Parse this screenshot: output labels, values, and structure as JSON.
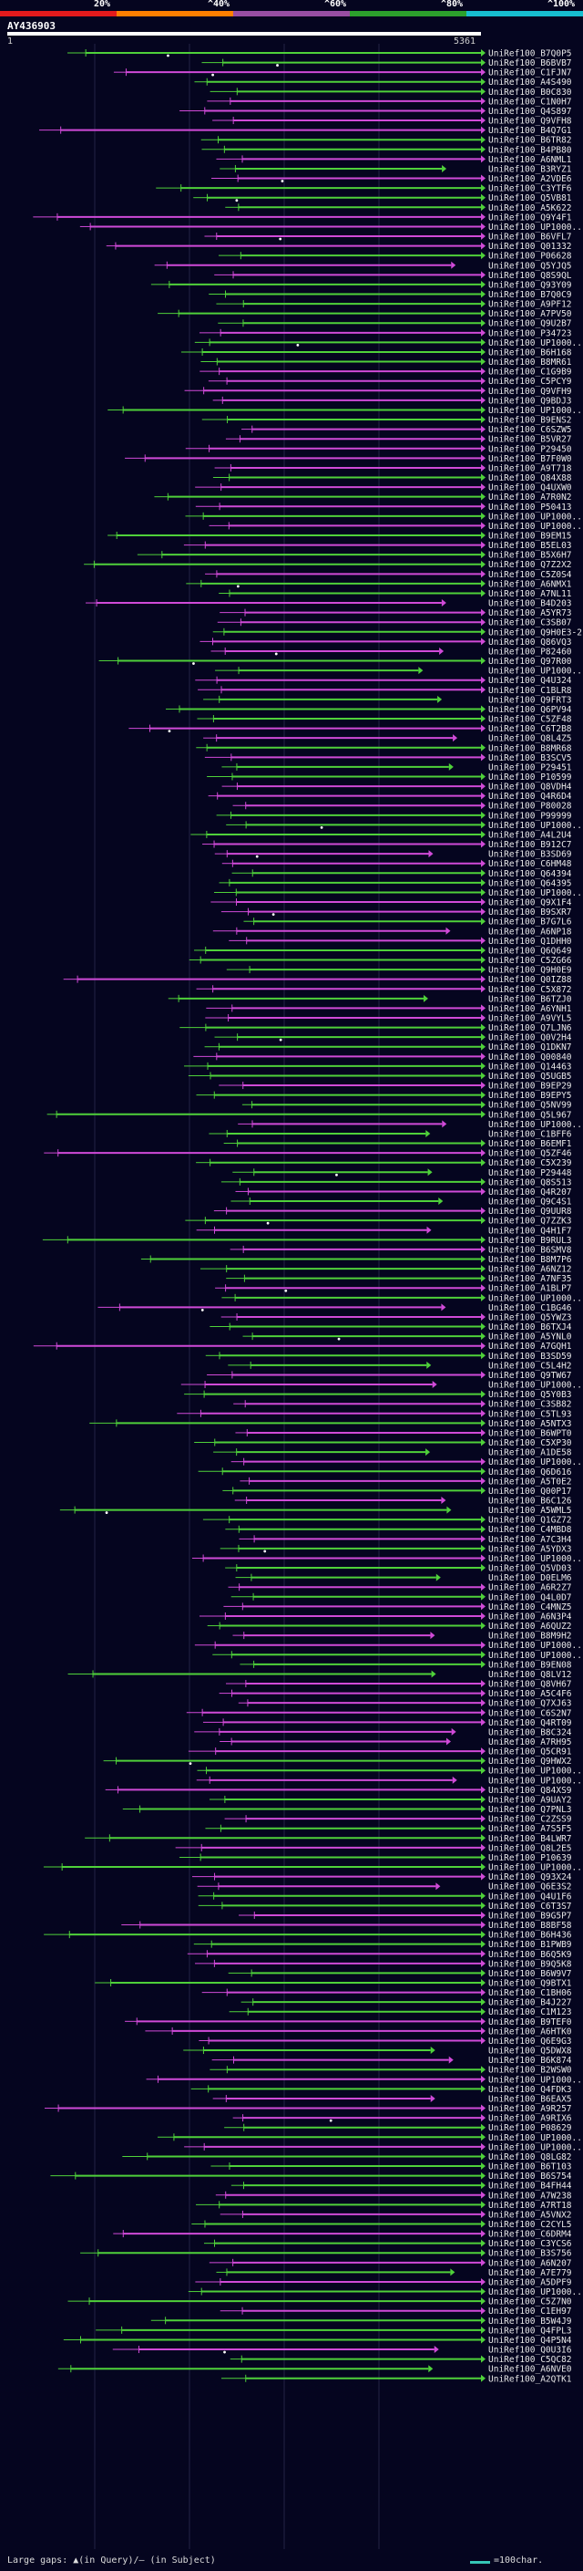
{
  "scale": {
    "labels": [
      "20%",
      "^40%",
      "^60%",
      "^80%",
      "^100%"
    ],
    "colors": [
      "#e41a1c",
      "#ff7f00",
      "#984ea3",
      "#2ca02c",
      "#17becf"
    ]
  },
  "query": {
    "id": "AY436903",
    "start": "1",
    "end": "5361"
  },
  "colors": {
    "green": "#4fd13a",
    "magenta": "#d04ad8",
    "gridline": "#222244"
  },
  "hits": [
    "UniRef100_B7Q0P5",
    "UniRef100_B6BVB7",
    "UniRef100_C1FJN7",
    "UniRef100_A4S490",
    "UniRef100_B0C830",
    "UniRef100_C1N0H7",
    "UniRef100_Q4S897",
    "UniRef100_Q9VFH8",
    "UniRef100_B4Q7G1",
    "UniRef100_B6TR82",
    "UniRef100_B4PB80",
    "UniRef100_A6NML1",
    "UniRef100_B3RYZ1",
    "UniRef100_A2VDE6",
    "UniRef100_C3YTF6",
    "UniRef100_Q5VB81",
    "UniRef100_A5K622",
    "UniRef100_Q9Y4F1",
    "UniRef100_UP1000...",
    "UniRef100_B6VFL7",
    "UniRef100_Q01332",
    "UniRef100_P06628",
    "UniRef100_Q5YJQ5",
    "UniRef100_Q8S9QL",
    "UniRef100_Q93Y09",
    "UniRef100_B7Q0C9",
    "UniRef100_A9PF12",
    "UniRef100_A7PV50",
    "UniRef100_Q9U2B7",
    "UniRef100_P34723",
    "UniRef100_UP1000...",
    "UniRef100_B6H168",
    "UniRef100_B8MR61",
    "UniRef100_C1G9B9",
    "UniRef100_C5PCY9",
    "UniRef100_Q9VFH9",
    "UniRef100_Q9BDJ3",
    "UniRef100_UP1000...",
    "UniRef100_B9ENS2",
    "UniRef100_C6SZW5",
    "UniRef100_B5VR27",
    "UniRef100_P29450",
    "UniRef100_B7F0W0",
    "UniRef100_A9T718",
    "UniRef100_Q84X88",
    "UniRef100_Q4UXW0",
    "UniRef100_A7R0N2",
    "UniRef100_P50413",
    "UniRef100_UP1000...",
    "UniRef100_UP1000...",
    "UniRef100_B9EM15",
    "UniRef100_B5EL03",
    "UniRef100_B5X6H7",
    "UniRef100_Q7Z2X2",
    "UniRef100_C5Z0S4",
    "UniRef100_A6NMX1",
    "UniRef100_A7NL11",
    "UniRef100_B4D203",
    "UniRef100_A5YR73",
    "UniRef100_C3SB07",
    "UniRef100_Q9H0E3-2",
    "UniRef100_Q86VQ3",
    "UniRef100_P82460",
    "UniRef100_Q97R00",
    "UniRef100_UP1000...",
    "UniRef100_Q4U324",
    "UniRef100_C1BLR8",
    "UniRef100_Q9FRT3",
    "UniRef100_Q6PV94",
    "UniRef100_C5ZF48",
    "UniRef100_C6T2B8",
    "UniRef100_Q8L4Z5",
    "UniRef100_B8MR68",
    "UniRef100_B3SCV5",
    "UniRef100_P29451",
    "UniRef100_P10599",
    "UniRef100_Q8VDH4",
    "UniRef100_Q4R6D4",
    "UniRef100_P80028",
    "UniRef100_P99999",
    "UniRef100_UP1000...",
    "UniRef100_A4L2U4",
    "UniRef100_B912C7",
    "UniRef100_B3SD69",
    "UniRef100_C6HM48",
    "UniRef100_Q64394",
    "UniRef100_Q64395",
    "UniRef100_UP1000...",
    "UniRef100_Q9X1F4",
    "UniRef100_B9SXR7",
    "UniRef100_B7G7L6",
    "UniRef100_A6NP18",
    "UniRef100_Q1DHH0",
    "UniRef100_Q6Q649",
    "UniRef100_C5ZG66",
    "UniRef100_Q9H0E9",
    "UniRef100_Q0IZ88",
    "UniRef100_C5X872",
    "UniRef100_B6TZJ0",
    "UniRef100_A6YNH1",
    "UniRef100_A9VYL5",
    "UniRef100_Q7LJN6",
    "UniRef100_Q0V2H4",
    "UniRef100_Q1DKN7",
    "UniRef100_Q00840",
    "UniRef100_Q14463",
    "UniRef100_Q5UGB5",
    "UniRef100_B9EP29",
    "UniRef100_B9EPY5",
    "UniRef100_Q5NV99",
    "UniRef100_Q5L967",
    "UniRef100_UP1000...",
    "UniRef100_C1BFF6",
    "UniRef100_B6EMF1",
    "UniRef100_Q5ZF46",
    "UniRef100_C5X239",
    "UniRef100_P29448",
    "UniRef100_Q8S513",
    "UniRef100_Q4R207",
    "UniRef100_Q9C4S1",
    "UniRef100_Q9UUR8",
    "UniRef100_Q7ZZK3",
    "UniRef100_Q4H1F7",
    "UniRef100_B9RUL3",
    "UniRef100_B6SMV8",
    "UniRef100_B8M7P6",
    "UniRef100_A6NZ12",
    "UniRef100_A7NF35",
    "UniRef100_A1BLP7",
    "UniRef100_UP1000...",
    "UniRef100_C1BG46",
    "UniRef100_Q5YWZ3",
    "UniRef100_B6TXJ4",
    "UniRef100_A5YNL0",
    "UniRef100_A7GQH1",
    "UniRef100_B3SD59",
    "UniRef100_C5L4H2",
    "UniRef100_Q9TW67",
    "UniRef100_UP1000...",
    "UniRef100_Q5Y0B3",
    "UniRef100_C3SB82",
    "UniRef100_C5TL93",
    "UniRef100_A5NTX3",
    "UniRef100_B6WPT0",
    "UniRef100_C5XP30",
    "UniRef100_A1DE58",
    "UniRef100_UP1000...",
    "UniRef100_Q6D616",
    "UniRef100_A5T0E2",
    "UniRef100_Q00P17",
    "UniRef100_B6C126",
    "UniRef100_A5WML5",
    "UniRef100_Q1GZ72",
    "UniRef100_C4MBD8",
    "UniRef100_A7C3H4",
    "UniRef100_A5YDX3",
    "UniRef100_UP1000...",
    "UniRef100_Q5VD03",
    "UniRef100_D0ELM6",
    "UniRef100_A6R2Z7",
    "UniRef100_Q4L0D7",
    "UniRef100_C4MNZ5",
    "UniRef100_A6N3P4",
    "UniRef100_A6QUZ2",
    "UniRef100_B8M9H2",
    "UniRef100_UP1000...",
    "UniRef100_UP1000...",
    "UniRef100_B9EN08",
    "UniRef100_Q8LV12",
    "UniRef100_Q8VH67",
    "UniRef100_A5C4F6",
    "UniRef100_Q7XJ63",
    "UniRef100_C6S2N7",
    "UniRef100_Q4RT09",
    "UniRef100_B8C324",
    "UniRef100_A7RH95",
    "UniRef100_Q5CR91",
    "UniRef100_Q9HWX2",
    "UniRef100_UP1000...",
    "UniRef100_UP1000...",
    "UniRef100_Q84XS9",
    "UniRef100_A9UAY2",
    "UniRef100_Q7PNL3",
    "UniRef100_C2ZSS9",
    "UniRef100_A7S5F5",
    "UniRef100_B4LWR7",
    "UniRef100_Q8L2E5",
    "UniRef100_P10639",
    "UniRef100_UP1000...",
    "UniRef100_Q93X24",
    "UniRef100_Q6E3S2",
    "UniRef100_Q4U1F6",
    "UniRef100_C6T3S7",
    "UniRef100_B9G5P7",
    "UniRef100_B8BF58",
    "UniRef100_B6H436",
    "UniRef100_B1PWB9",
    "UniRef100_B6Q5K9",
    "UniRef100_B9Q5K8",
    "UniRef100_B6W9V7",
    "UniRef100_Q9BTX1",
    "UniRef100_C1BH06",
    "UniRef100_B4J227",
    "UniRef100_C1M123",
    "UniRef100_B9TEF0",
    "UniRef100_A6HTK0",
    "UniRef100_Q6E9G3",
    "UniRef100_Q5DWX8",
    "UniRef100_B6K874",
    "UniRef100_B2WSW0",
    "UniRef100_UP1000...",
    "UniRef100_Q4FDK3",
    "UniRef100_B6EAX5",
    "UniRef100_A9R257",
    "UniRef100_A9RIX6",
    "UniRef100_P08629",
    "UniRef100_UP1000...",
    "UniRef100_UP1000...",
    "UniRef100_Q8LG82",
    "UniRef100_B6T103",
    "UniRef100_B6S754",
    "UniRef100_B4FH44",
    "UniRef100_A7W238",
    "UniRef100_A7RT18",
    "UniRef100_A5VNX2",
    "UniRef100_C2CYL5",
    "UniRef100_C6DRM4",
    "UniRef100_C3YCS6",
    "UniRef100_B3S756",
    "UniRef100_A6N207",
    "UniRef100_A7E779",
    "UniRef100_A5DPF9",
    "UniRef100_UP1000...",
    "UniRef100_C5Z7N0",
    "UniRef100_C1EH97",
    "UniRef100_B5W4J9",
    "UniRef100_Q4FPL3",
    "UniRef100_Q4P5N4",
    "UniRef100_Q0U3I6",
    "UniRef100_C5QC82",
    "UniRef100_A6NVE0",
    "UniRef100_A2QTK1"
  ],
  "footer": {
    "gaps_text": "Large gaps: ▲(in Query)/– (in Subject)",
    "legend_text": "=100char."
  }
}
